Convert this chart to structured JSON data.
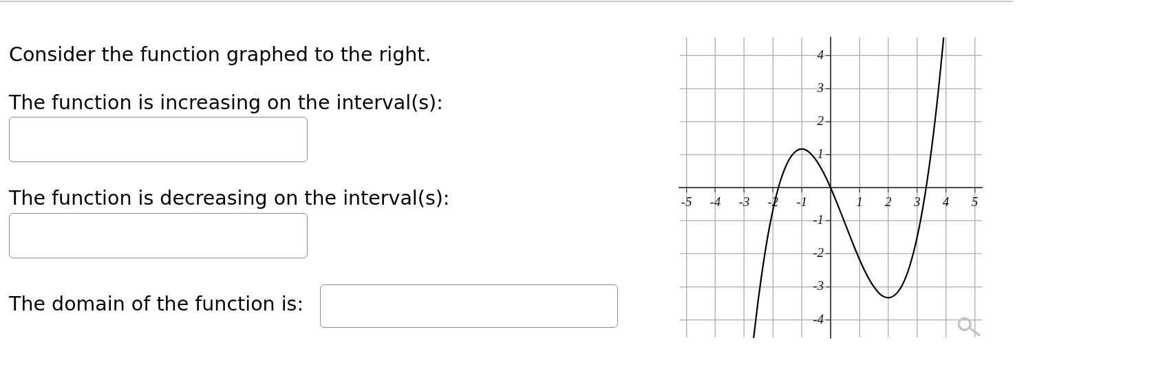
{
  "chart_data": {
    "type": "line",
    "annotations": [
      "Consider the function graphed to the right.",
      "The function is increasing on the interval(s):",
      "The function is decreasing on the interval(s):",
      "The domain of the function is:"
    ],
    "x": [
      -2.67,
      -2.5,
      -2.25,
      -2,
      -1.75,
      -1.5,
      -1.25,
      -1,
      -0.75,
      -0.5,
      -0.25,
      0,
      0.25,
      0.5,
      0.75,
      1,
      1.25,
      1.5,
      1.75,
      2,
      2.25,
      2.5,
      2.75,
      3,
      3.25,
      3.5,
      3.75,
      3.92
    ],
    "values": [
      -4.55,
      -3.33,
      -1.83,
      -0.67,
      0.18,
      0.75,
      1.07,
      1.17,
      1.08,
      0.83,
      0.46,
      0,
      -0.53,
      -1.08,
      -1.64,
      -2.17,
      -2.63,
      -3,
      -3.25,
      -3.33,
      -3.23,
      -2.92,
      -2.35,
      -1.5,
      -0.34,
      1.17,
      3.05,
      4.55
    ],
    "color": "#000000",
    "xlim": [
      -5.25,
      5.25
    ],
    "ylim": [
      -4.55,
      4.55
    ],
    "xticks": [
      -5,
      -4,
      -3,
      -2,
      -1,
      {
        "value": 0,
        "label": null
      },
      1,
      2,
      3,
      4,
      5
    ],
    "yticks": [
      -4,
      -3,
      -2,
      -1,
      {
        "value": 0,
        "label": null
      },
      1,
      2,
      3,
      4
    ],
    "grid": true,
    "marker": "none"
  }
}
